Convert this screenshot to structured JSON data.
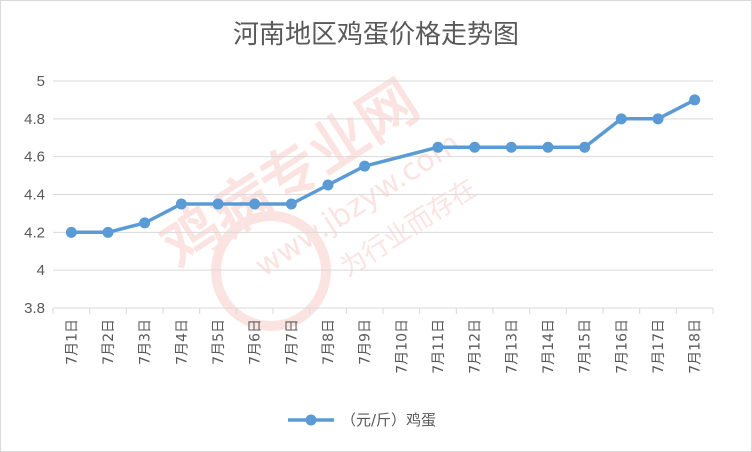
{
  "chart_data": {
    "type": "line",
    "title": "河南地区鸡蛋价格走势图",
    "categories": [
      "7月1日",
      "7月2日",
      "7月3日",
      "7月4日",
      "7月5日",
      "7月6日",
      "7月7日",
      "7月8日",
      "7月9日",
      "7月10日",
      "7月11日",
      "7月12日",
      "7月13日",
      "7月14日",
      "7月15日",
      "7月16日",
      "7月17日",
      "7月18日"
    ],
    "series": [
      {
        "name": "（元/斤）鸡蛋",
        "values": [
          4.2,
          4.2,
          4.25,
          4.35,
          4.35,
          4.35,
          4.35,
          4.45,
          4.55,
          null,
          4.65,
          4.65,
          4.65,
          4.65,
          4.65,
          4.8,
          4.8,
          4.9
        ]
      }
    ],
    "ylim": [
      3.8,
      5
    ],
    "yticks": [
      "3.8",
      "4",
      "4.2",
      "4.4",
      "4.6",
      "4.8",
      "5"
    ],
    "grid": true,
    "legend_position": "bottom",
    "colors": {
      "series": "#5b9bd5",
      "grid": "#d9d9d9",
      "text": "#595959"
    }
  },
  "watermark": {
    "brand": "鸡病专业网",
    "url": "www.jbzyw.com",
    "slogan": "为行业而存在"
  }
}
